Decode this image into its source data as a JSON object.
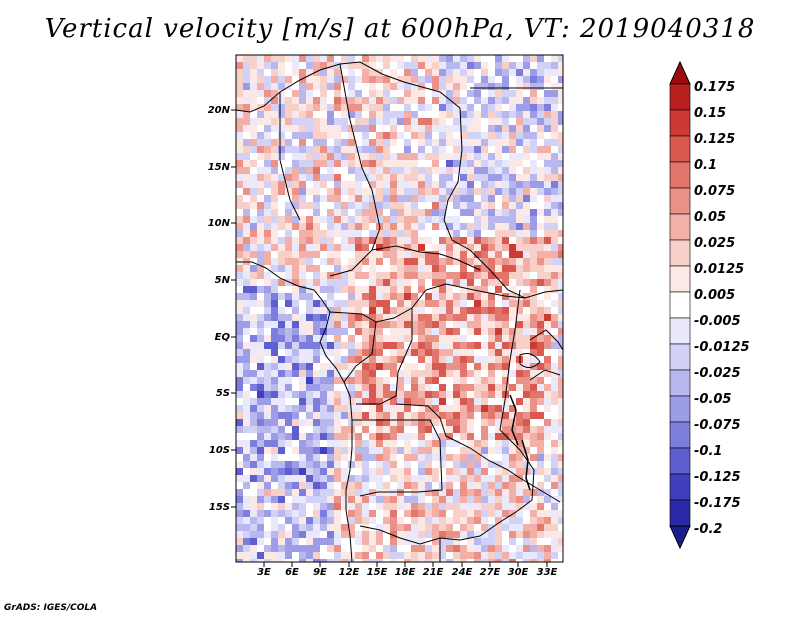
{
  "title": "Vertical velocity [m/s] at 600hPa, VT: 2019040318",
  "credit": "GrADS: IGES/COLA",
  "map": {
    "lat_labels": [
      "20N",
      "15N",
      "10N",
      "5N",
      "EQ",
      "5S",
      "10S",
      "15S"
    ],
    "lon_labels": [
      "3E",
      "6E",
      "9E",
      "12E",
      "15E",
      "18E",
      "21E",
      "24E",
      "27E",
      "30E",
      "33E"
    ]
  },
  "colorbar": {
    "labels": [
      "0.175",
      "0.15",
      "0.125",
      "0.1",
      "0.075",
      "0.05",
      "0.025",
      "0.0125",
      "0.005",
      "-0.005",
      "-0.0125",
      "-0.025",
      "-0.05",
      "-0.075",
      "-0.1",
      "-0.125",
      "-0.175",
      "-0.2"
    ],
    "colors": [
      "#a00c0c",
      "#b8211f",
      "#cc3a34",
      "#d9584f",
      "#e3766c",
      "#eb9288",
      "#f2b0a8",
      "#f8d0ca",
      "#fce9e6",
      "#ffffff",
      "#e9e9fb",
      "#d2d2f6",
      "#b8b8ef",
      "#9c9ce7",
      "#7d7ddc",
      "#5e5ecf",
      "#4040bf",
      "#2a2aa8",
      "#1c1c8c"
    ]
  },
  "colors": {
    "positive_dark": "#b8211f",
    "negative_dark": "#2a2aa8",
    "neutral": "#ffffff"
  }
}
